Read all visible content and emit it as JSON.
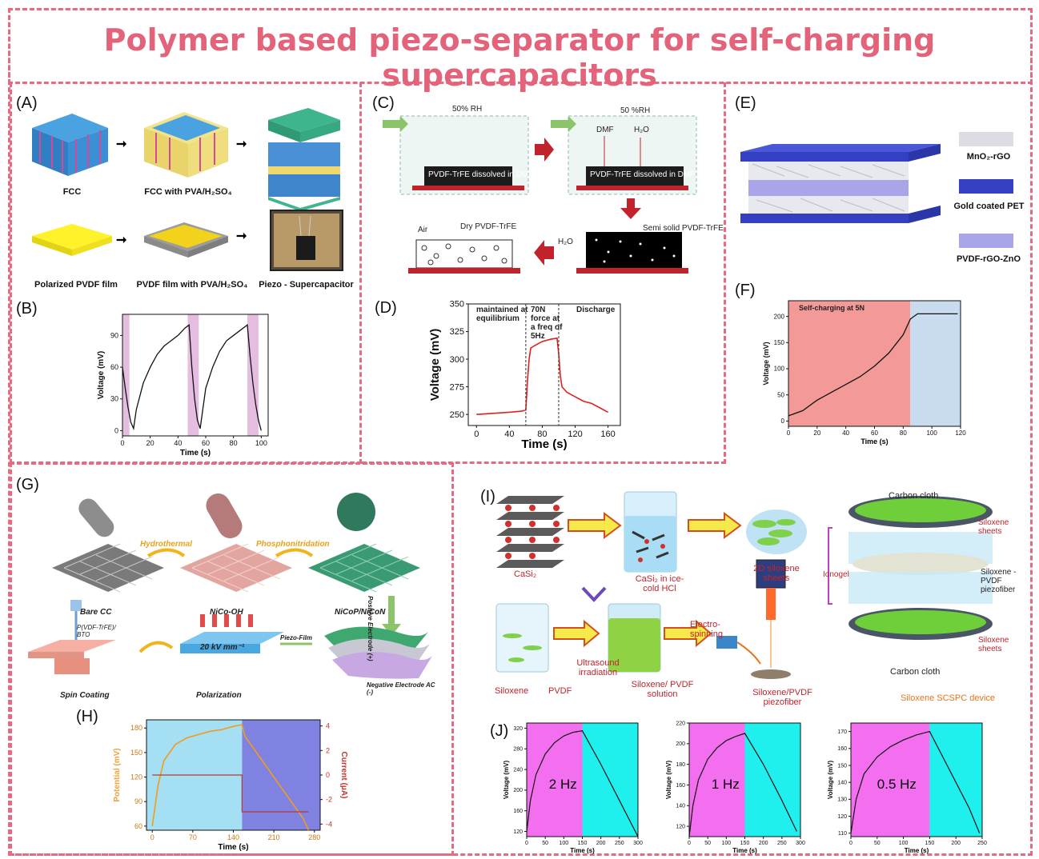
{
  "title": "Polymer based piezo-separator for self-charging supercapacitors",
  "colors": {
    "accent": "#e3637b",
    "frame": "#e36b82"
  },
  "panelA": {
    "label": "(A)",
    "captions": [
      "FCC",
      "FCC with PVA/H₂SO₄",
      "Polarized PVDF film",
      "PVDF film with PVA/H₂SO₄",
      "Piezo - Supercapacitor"
    ]
  },
  "panelB": {
    "label": "(B)",
    "chart_data": {
      "type": "line",
      "xlabel": "Time (s)",
      "ylabel": "Voltage (mV)",
      "xlim": [
        0,
        105
      ],
      "ylim": [
        -5,
        110
      ],
      "xticks": [
        0,
        20,
        40,
        60,
        80,
        100
      ],
      "yticks": [
        0,
        30,
        60,
        90
      ],
      "x": [
        0,
        2,
        4,
        6,
        8,
        10,
        15,
        20,
        25,
        30,
        35,
        40,
        45,
        48,
        50,
        52,
        54,
        56,
        60,
        65,
        70,
        75,
        80,
        85,
        88,
        90,
        92,
        94,
        96,
        98,
        100
      ],
      "y": [
        60,
        40,
        22,
        8,
        2,
        20,
        45,
        60,
        72,
        80,
        85,
        90,
        97,
        100,
        60,
        30,
        10,
        2,
        40,
        60,
        75,
        85,
        90,
        95,
        98,
        100,
        70,
        45,
        25,
        10,
        0
      ]
    }
  },
  "panelC": {
    "label": "(C)",
    "rh1": "50% RH",
    "rh2": "50 %RH",
    "film_text": "PVDF-TrFE dissolved in DMF",
    "dmf": "DMF",
    "h2o": "H₂O",
    "air": "Air",
    "dry": "Dry PVDF-TrFE",
    "semi": "Semi solid PVDF-TrFE",
    "h2o2": "H₂O"
  },
  "panelD": {
    "label": "(D)",
    "annot1": "maintained at equilibrium",
    "annot2": "70N force at a freq of 5Hz",
    "annot3": "Discharge",
    "chart_data": {
      "type": "line",
      "xlabel": "Time (s)",
      "ylabel": "Voltage (mV)",
      "xlim": [
        -10,
        175
      ],
      "ylim": [
        240,
        350
      ],
      "xticks": [
        0,
        40,
        80,
        120,
        160
      ],
      "yticks": [
        250,
        275,
        300,
        325,
        350
      ],
      "x": [
        0,
        20,
        40,
        55,
        60,
        62,
        64,
        66,
        70,
        80,
        90,
        98,
        100,
        102,
        104,
        110,
        120,
        130,
        140,
        150,
        160
      ],
      "y": [
        250,
        251,
        252,
        253,
        254,
        280,
        300,
        310,
        312,
        316,
        318,
        319,
        305,
        285,
        275,
        270,
        266,
        262,
        260,
        256,
        252
      ]
    }
  },
  "panelE": {
    "label": "(E)",
    "legend": [
      "MnO₂-rGO",
      "Gold coated PET",
      "PVDF-rGO-ZnO"
    ]
  },
  "panelF": {
    "label": "(F)",
    "annot": "Self-charging at 5N",
    "chart_data": {
      "type": "line",
      "xlabel": "Time (s)",
      "ylabel": "Voltage (mV)",
      "xlim": [
        0,
        120
      ],
      "ylim": [
        -10,
        230
      ],
      "xticks": [
        0,
        20,
        40,
        60,
        80,
        100,
        120
      ],
      "yticks": [
        0,
        50,
        100,
        150,
        200
      ],
      "x": [
        0,
        10,
        20,
        30,
        40,
        50,
        60,
        70,
        80,
        85,
        90,
        100,
        110,
        118
      ],
      "y": [
        10,
        20,
        40,
        55,
        70,
        85,
        105,
        130,
        165,
        195,
        205,
        205,
        205,
        205
      ]
    }
  },
  "panelG": {
    "label": "(G)",
    "hydro": "Hydrothermal",
    "phospho": "Phosphonitridation",
    "bare": "Bare CC",
    "nicooh": "NiCo-OH",
    "nicop": "NiCoP/NiCoN",
    "pos": "Positive Electrode (+)",
    "pvdf": "P(VDF-TrFE)/ BTO",
    "spin": "Spin Coating",
    "polar": "Polarization",
    "kv": "20 kV mm⁻¹",
    "piezo": "Piezo-Film",
    "neg": "Negative Electrode AC (-)"
  },
  "panelH": {
    "label": "(H)",
    "chart_data": {
      "type": "line",
      "xlabel": "Time (s)",
      "ylabel": "Potential (mV)",
      "y2label": "Current (μA)",
      "xlim": [
        -10,
        290
      ],
      "ylim": [
        55,
        190
      ],
      "xticks": [
        0,
        70,
        140,
        210,
        280
      ],
      "yticks": [
        60,
        90,
        120,
        150,
        180
      ],
      "y2ticks": [
        -4,
        -2,
        0,
        2,
        4
      ],
      "potential_x": [
        0,
        10,
        20,
        40,
        60,
        80,
        100,
        120,
        140,
        155,
        160,
        180,
        200,
        220,
        240,
        260,
        270
      ],
      "potential_y": [
        60,
        110,
        140,
        160,
        168,
        172,
        176,
        178,
        182,
        184,
        170,
        150,
        130,
        110,
        90,
        70,
        55
      ],
      "current_x": [
        0,
        155,
        155,
        270
      ],
      "current_y": [
        0,
        0,
        -3,
        -3
      ]
    }
  },
  "panelI": {
    "label": "(I)",
    "casi2": "CaSi₂",
    "casi2hcl": "CaSi₂ in ice-cold HCl",
    "siloxene2d": "2D siloxene sheets",
    "siloxene": "Siloxene",
    "pvdf": "PVDF",
    "ultra": "Ultrasound irradiation",
    "solution": "Siloxene/ PVDF solution",
    "electro": "Electro-spinning",
    "fiber": "Siloxene/PVDF piezofiber",
    "cloth_top": "Carbon cloth",
    "cloth_bottom": "Carbon cloth",
    "sheets1": "Siloxene sheets",
    "sheets2": "Siloxene sheets",
    "ionogel": "Ionogel",
    "piezofiber": "Siloxene -PVDF piezofiber",
    "device": "Siloxene SCSPC device"
  },
  "panelJ": {
    "label": "(J)",
    "chart_data": [
      {
        "type": "line",
        "annotation": "2 Hz",
        "xlabel": "Time (s)",
        "ylabel": "Voltage (mV)",
        "xlim": [
          0,
          300
        ],
        "ylim": [
          110,
          330
        ],
        "xticks": [
          0,
          50,
          100,
          150,
          200,
          250,
          300
        ],
        "yticks": [
          120,
          160,
          200,
          240,
          280,
          320
        ],
        "x": [
          0,
          10,
          25,
          50,
          75,
          100,
          125,
          150,
          200,
          250,
          300
        ],
        "y": [
          120,
          180,
          230,
          270,
          292,
          305,
          312,
          315,
          250,
          180,
          110
        ]
      },
      {
        "type": "line",
        "annotation": "1 Hz",
        "xlabel": "Time (s)",
        "ylabel": "Voltage (mV)",
        "xlim": [
          0,
          300
        ],
        "ylim": [
          110,
          220
        ],
        "xticks": [
          0,
          50,
          100,
          150,
          200,
          250,
          300
        ],
        "yticks": [
          120,
          140,
          160,
          180,
          200,
          220
        ],
        "x": [
          0,
          10,
          25,
          50,
          75,
          100,
          125,
          150,
          200,
          250,
          290
        ],
        "y": [
          110,
          140,
          165,
          185,
          196,
          203,
          207,
          210,
          180,
          145,
          115
        ]
      },
      {
        "type": "line",
        "annotation": "0.5 Hz",
        "xlabel": "Time (s)",
        "ylabel": "Voltage (mV)",
        "xlim": [
          0,
          250
        ],
        "ylim": [
          108,
          175
        ],
        "xticks": [
          0,
          50,
          100,
          150,
          200,
          250
        ],
        "yticks": [
          110,
          120,
          130,
          140,
          150,
          160,
          170
        ],
        "x": [
          0,
          10,
          25,
          50,
          75,
          100,
          125,
          150,
          175,
          200,
          225,
          245
        ],
        "y": [
          110,
          130,
          145,
          155,
          161,
          165,
          168,
          170,
          155,
          140,
          125,
          110
        ]
      }
    ]
  }
}
